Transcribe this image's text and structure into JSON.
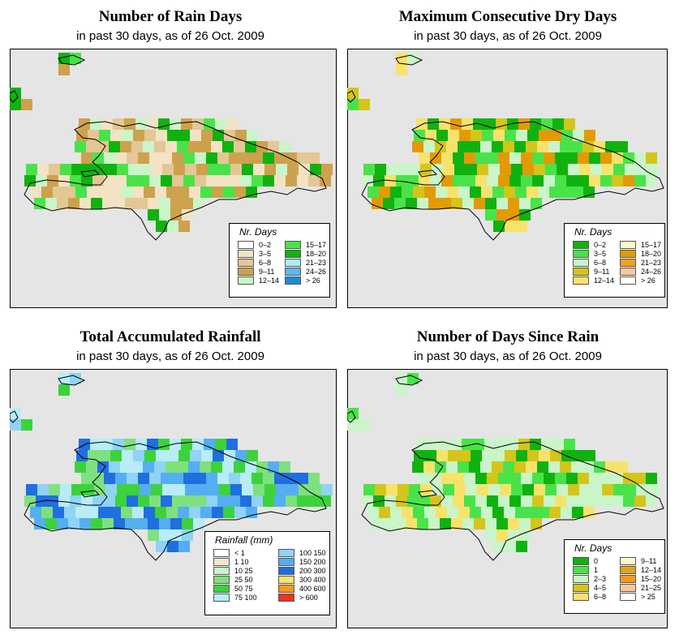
{
  "colors": {
    "map_background": "#e5e5e5",
    "land_outline": "#000000"
  },
  "panels": [
    {
      "title": "Number of Rain Days",
      "subtitle": "in past 30 days, as of  26 Oct. 2009",
      "legend": {
        "title": "Nr. Days",
        "items": [
          {
            "label": "0–2",
            "color": "#ffffff"
          },
          {
            "label": "3–5",
            "color": "#f3e3c4"
          },
          {
            "label": "6–8",
            "color": "#e3c795"
          },
          {
            "label": "9–11",
            "color": "#cda14e"
          },
          {
            "label": "12–14",
            "color": "#c9f5c9"
          },
          {
            "label": "15–17",
            "color": "#49e349"
          },
          {
            "label": "18–20",
            "color": "#10b210"
          },
          {
            "label": "21–23",
            "color": "#b0ebf5"
          },
          {
            "label": "24–26",
            "color": "#5db7ee"
          },
          {
            "label": "> 26",
            "color": "#1e8bd6"
          }
        ]
      },
      "cell_palette": [
        "#f3e3c4",
        "#e3c795",
        "#cda14e",
        "#c9f5c9",
        "#49e349",
        "#10b210"
      ]
    },
    {
      "title": "Maximum Consecutive Dry Days",
      "subtitle": "in past 30 days, as of  26 Oct. 2009",
      "legend": {
        "title": "Nr. Days",
        "items": [
          {
            "label": "0–2",
            "color": "#10b210"
          },
          {
            "label": "3–5",
            "color": "#49e349"
          },
          {
            "label": "6–8",
            "color": "#c9f5c9"
          },
          {
            "label": "9–11",
            "color": "#d4c51a"
          },
          {
            "label": "12–14",
            "color": "#f7e26c"
          },
          {
            "label": "15–17",
            "color": "#fff8c6"
          },
          {
            "label": "18–20",
            "color": "#e49a05"
          },
          {
            "label": "21–23",
            "color": "#f0a21e"
          },
          {
            "label": "24–26",
            "color": "#f8c79c"
          },
          {
            "label": "> 26",
            "color": "#ffffff"
          }
        ]
      },
      "cell_palette": [
        "#c9f5c9",
        "#49e349",
        "#10b210",
        "#d4c51a",
        "#f7e26c",
        "#e49a05"
      ]
    },
    {
      "title": "Total Accumulated Rainfall",
      "subtitle": "in past 30 days, as of  26 Oct. 2009",
      "legend": {
        "title": "Rainfall (mm)",
        "items": [
          {
            "label": "< 1",
            "color": "#ffffff"
          },
          {
            "label": "1    10",
            "color": "#f5e6cc"
          },
          {
            "label": "10    25",
            "color": "#c9f5c9"
          },
          {
            "label": "25    50",
            "color": "#7fe07f"
          },
          {
            "label": "50    75",
            "color": "#3cd23c"
          },
          {
            "label": "75  100",
            "color": "#b8ecf7"
          },
          {
            "label": "100  150",
            "color": "#8fd3f5"
          },
          {
            "label": "150  200",
            "color": "#55aef0"
          },
          {
            "label": "200  300",
            "color": "#1f6fe0"
          },
          {
            "label": "300  400",
            "color": "#f7e26c"
          },
          {
            "label": "400  600",
            "color": "#f39a1e"
          },
          {
            "label": "> 600",
            "color": "#f0321e"
          }
        ]
      },
      "cell_palette": [
        "#7fe07f",
        "#3cd23c",
        "#b8ecf7",
        "#8fd3f5",
        "#55aef0",
        "#1f6fe0"
      ]
    },
    {
      "title": "Number of Days Since Rain",
      "subtitle": "in past 30 days, as of  26 Oct. 2009",
      "legend": {
        "title": "Nr. Days",
        "items": [
          {
            "label": "0",
            "color": "#10b210"
          },
          {
            "label": "1",
            "color": "#49e349"
          },
          {
            "label": "2–3",
            "color": "#c9f5c9"
          },
          {
            "label": "4–5",
            "color": "#d4c51a"
          },
          {
            "label": "6–8",
            "color": "#f7e26c"
          },
          {
            "label": "9–11",
            "color": "#fff8c6"
          },
          {
            "label": "12–14",
            "color": "#e4a21e"
          },
          {
            "label": "15–20",
            "color": "#f39a1e"
          },
          {
            "label": "21–25",
            "color": "#f8c79c"
          },
          {
            "label": "> 25",
            "color": "#ffffff"
          }
        ]
      },
      "cell_palette": [
        "#c9f5c9",
        "#c9f5c9",
        "#49e349",
        "#10b210",
        "#d4c51a",
        "#f7e26c"
      ]
    }
  ]
}
